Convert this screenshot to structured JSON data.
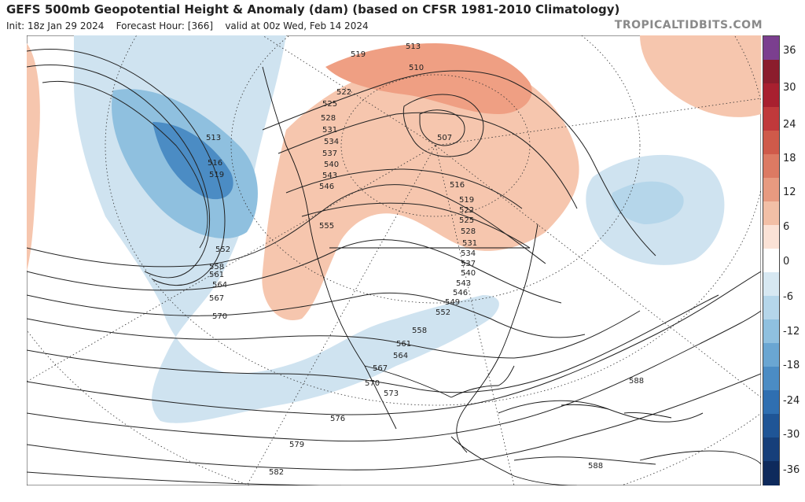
{
  "header": {
    "title": "GEFS 500mb Geopotential Height & Anomaly (dam) (based on CFSR 1981-2010 Climatology)",
    "init": "Init: 18z Jan 29 2024",
    "forecast_hour": "Forecast Hour: [366]",
    "valid": "valid at 00z Wed, Feb 14 2024",
    "brand": "TROPICALTIDBITS.COM"
  },
  "colorbar": {
    "ticks": [
      "36",
      "30",
      "24",
      "18",
      "12",
      "6",
      "0",
      "-6",
      "-12",
      "-18",
      "-24",
      "-30",
      "-36"
    ],
    "colors": [
      "#7b3f8f",
      "#8b1d2c",
      "#a8202f",
      "#c0393b",
      "#cf5a4a",
      "#dc7a63",
      "#e79a80",
      "#f2bfa6",
      "#fbe2d6",
      "#ffffff",
      "#d7e8f2",
      "#b5d6ea",
      "#8fc0df",
      "#6aa6d2",
      "#4b8cc4",
      "#2f6fb1",
      "#1f5596",
      "#163f7a",
      "#0e2a5c"
    ]
  },
  "contour_labels": [
    "513",
    "516",
    "519",
    "552",
    "558",
    "561",
    "564",
    "567",
    "570",
    "576",
    "579",
    "582",
    "519",
    "522",
    "525",
    "528",
    "531",
    "534",
    "537",
    "540",
    "543",
    "546",
    "555",
    "513",
    "510",
    "507",
    "516",
    "519",
    "522",
    "525",
    "528",
    "531",
    "534",
    "537",
    "540",
    "543",
    "546",
    "549",
    "552",
    "558",
    "561",
    "564",
    "567",
    "570",
    "573",
    "588",
    "588"
  ]
}
